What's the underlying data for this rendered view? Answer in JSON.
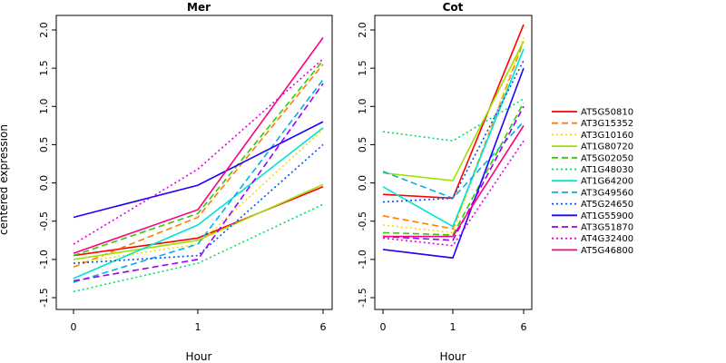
{
  "chart_data": [
    {
      "type": "line",
      "title": "Mer",
      "xlabel": "Hour",
      "ylabel": "centered expression",
      "categories": [
        "0",
        "1",
        "6"
      ],
      "ylim": [
        -1.5,
        2.0
      ],
      "yticks": [
        "-1.5",
        "-1.0",
        "-0.5",
        "0.0",
        "0.5",
        "1.0",
        "1.5",
        "2.0"
      ],
      "series": [
        {
          "name": "AT5G50810",
          "values": [
            -0.95,
            -0.72,
            -0.05
          ]
        },
        {
          "name": "AT3G15352",
          "values": [
            -1.1,
            -0.45,
            1.55
          ]
        },
        {
          "name": "AT3G10160",
          "values": [
            -1.05,
            -0.8,
            0.7
          ]
        },
        {
          "name": "AT1G80720",
          "values": [
            -1.0,
            -0.75,
            -0.02
          ]
        },
        {
          "name": "AT5G02050",
          "values": [
            -0.95,
            -0.4,
            1.6
          ]
        },
        {
          "name": "AT1G48030",
          "values": [
            -1.42,
            -1.05,
            -0.28
          ]
        },
        {
          "name": "AT1G64200",
          "values": [
            -1.25,
            -0.55,
            0.72
          ]
        },
        {
          "name": "AT3G49560",
          "values": [
            -1.3,
            -0.8,
            1.35
          ]
        },
        {
          "name": "AT5G24650",
          "values": [
            -1.05,
            -0.95,
            0.5
          ]
        },
        {
          "name": "AT1G55900",
          "values": [
            -0.45,
            -0.03,
            0.8
          ]
        },
        {
          "name": "AT3G51870",
          "values": [
            -1.28,
            -1.0,
            1.3
          ]
        },
        {
          "name": "AT4G32400",
          "values": [
            -0.8,
            0.18,
            1.62
          ]
        },
        {
          "name": "AT5G46800",
          "values": [
            -0.92,
            -0.35,
            1.9
          ]
        }
      ]
    },
    {
      "type": "line",
      "title": "Cot",
      "xlabel": "Hour",
      "ylabel": "",
      "categories": [
        "0",
        "1",
        "6"
      ],
      "ylim": [
        -1.5,
        2.0
      ],
      "yticks": [
        "-1.5",
        "-1.0",
        "-0.5",
        "0.0",
        "0.5",
        "1.0",
        "1.5",
        "2.0"
      ],
      "series": [
        {
          "name": "AT5G50810",
          "values": [
            -0.15,
            -0.2,
            2.07
          ]
        },
        {
          "name": "AT3G15352",
          "values": [
            -0.43,
            -0.6,
            1.85
          ]
        },
        {
          "name": "AT3G10160",
          "values": [
            -0.55,
            -0.65,
            1.9
          ]
        },
        {
          "name": "AT1G80720",
          "values": [
            0.13,
            0.03,
            1.85
          ]
        },
        {
          "name": "AT5G02050",
          "values": [
            -0.65,
            -0.68,
            1.05
          ]
        },
        {
          "name": "AT1G48030",
          "values": [
            0.67,
            0.55,
            1.1
          ]
        },
        {
          "name": "AT1G64200",
          "values": [
            -0.05,
            -0.57,
            1.75
          ]
        },
        {
          "name": "AT3G49560",
          "values": [
            0.15,
            -0.2,
            0.8
          ]
        },
        {
          "name": "AT5G24650",
          "values": [
            -0.25,
            -0.2,
            1.6
          ]
        },
        {
          "name": "AT1G55900",
          "values": [
            -0.87,
            -0.98,
            1.5
          ]
        },
        {
          "name": "AT3G51870",
          "values": [
            -0.7,
            -0.75,
            1.0
          ]
        },
        {
          "name": "AT4G32400",
          "values": [
            -0.72,
            -0.82,
            0.55
          ]
        },
        {
          "name": "AT5G46800",
          "values": [
            -0.7,
            -0.7,
            0.75
          ]
        }
      ]
    }
  ],
  "legend": {
    "placement": "right",
    "entries": [
      {
        "name": "AT5G50810",
        "color": "#ff0000",
        "dash": "solid"
      },
      {
        "name": "AT3G15352",
        "color": "#ff7f00",
        "dash": "dashed"
      },
      {
        "name": "AT3G10160",
        "color": "#ffd700",
        "dash": "dotted"
      },
      {
        "name": "AT1G80720",
        "color": "#9ee000",
        "dash": "solid"
      },
      {
        "name": "AT5G02050",
        "color": "#33cc00",
        "dash": "dashed"
      },
      {
        "name": "AT1G48030",
        "color": "#00e060",
        "dash": "dotted"
      },
      {
        "name": "AT1G64200",
        "color": "#00e5d0",
        "dash": "solid"
      },
      {
        "name": "AT3G49560",
        "color": "#00b0e8",
        "dash": "dashed"
      },
      {
        "name": "AT5G24650",
        "color": "#0050ff",
        "dash": "dotted"
      },
      {
        "name": "AT1G55900",
        "color": "#2000ff",
        "dash": "solid"
      },
      {
        "name": "AT3G51870",
        "color": "#9a00ff",
        "dash": "dashed"
      },
      {
        "name": "AT4G32400",
        "color": "#e000e0",
        "dash": "dotted"
      },
      {
        "name": "AT5G46800",
        "color": "#ff0080",
        "dash": "solid"
      }
    ]
  }
}
